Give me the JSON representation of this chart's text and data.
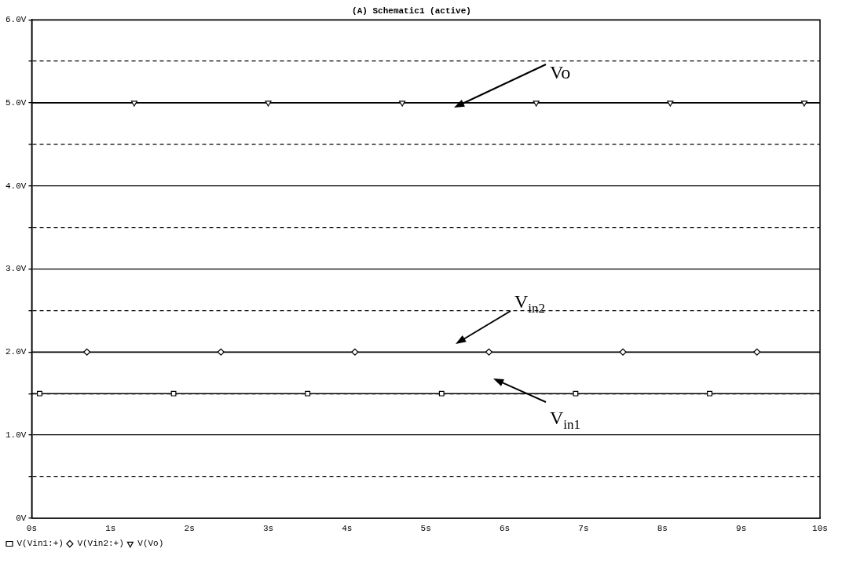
{
  "chart_data": {
    "type": "line",
    "title": "(A) Schematic1 (active)",
    "xlim": [
      0,
      10
    ],
    "xticks": [
      {
        "value": 0,
        "label": "0s"
      },
      {
        "value": 1,
        "label": "1s"
      },
      {
        "value": 2,
        "label": "2s"
      },
      {
        "value": 3,
        "label": "3s"
      },
      {
        "value": 4,
        "label": "4s"
      },
      {
        "value": 5,
        "label": "5s"
      },
      {
        "value": 6,
        "label": "6s"
      },
      {
        "value": 7,
        "label": "7s"
      },
      {
        "value": 8,
        "label": "8s"
      },
      {
        "value": 9,
        "label": "9s"
      },
      {
        "value": 10,
        "label": "10s"
      }
    ],
    "ylim": [
      0,
      6
    ],
    "yticks": [
      {
        "value": 0,
        "label": "0V"
      },
      {
        "value": 0.5,
        "label": null
      },
      {
        "value": 1,
        "label": "1.0V"
      },
      {
        "value": 1.5,
        "label": null
      },
      {
        "value": 2,
        "label": "2.0V"
      },
      {
        "value": 2.5,
        "label": null
      },
      {
        "value": 3,
        "label": "3.0V"
      },
      {
        "value": 3.5,
        "label": null
      },
      {
        "value": 4,
        "label": "4.0V"
      },
      {
        "value": 4.5,
        "label": null
      },
      {
        "value": 5,
        "label": "5.0V"
      },
      {
        "value": 5.5,
        "label": null
      },
      {
        "value": 6,
        "label": "6.0V"
      }
    ],
    "grid": "y",
    "legend": "bottom left",
    "line_style": "solid",
    "series": [
      {
        "name": "V(Vin1:+)",
        "color": "#000000",
        "marker": "square",
        "x": [
          0,
          0.1,
          1.8,
          3.5,
          5.2,
          6.9,
          8.6,
          10
        ],
        "values": [
          1.5,
          1.5,
          1.5,
          1.5,
          1.5,
          1.5,
          1.5,
          1.5
        ]
      },
      {
        "name": "V(Vin2:+)",
        "color": "#000000",
        "marker": "diamond",
        "x": [
          0,
          0.7,
          2.4,
          4.1,
          5.8,
          7.5,
          9.2,
          10
        ],
        "values": [
          2,
          2,
          2,
          2,
          2,
          2,
          2,
          2
        ]
      },
      {
        "name": "V(Vo)",
        "color": "#000000",
        "marker": "triangle",
        "x": [
          0,
          1.3,
          3.0,
          4.7,
          6.4,
          8.1,
          9.8,
          10
        ],
        "values": [
          5,
          5,
          5,
          5,
          5,
          5,
          5,
          5
        ]
      }
    ],
    "annotations": [
      "Vo",
      "V$_{in2}$",
      "V$_{in1}$"
    ]
  }
}
